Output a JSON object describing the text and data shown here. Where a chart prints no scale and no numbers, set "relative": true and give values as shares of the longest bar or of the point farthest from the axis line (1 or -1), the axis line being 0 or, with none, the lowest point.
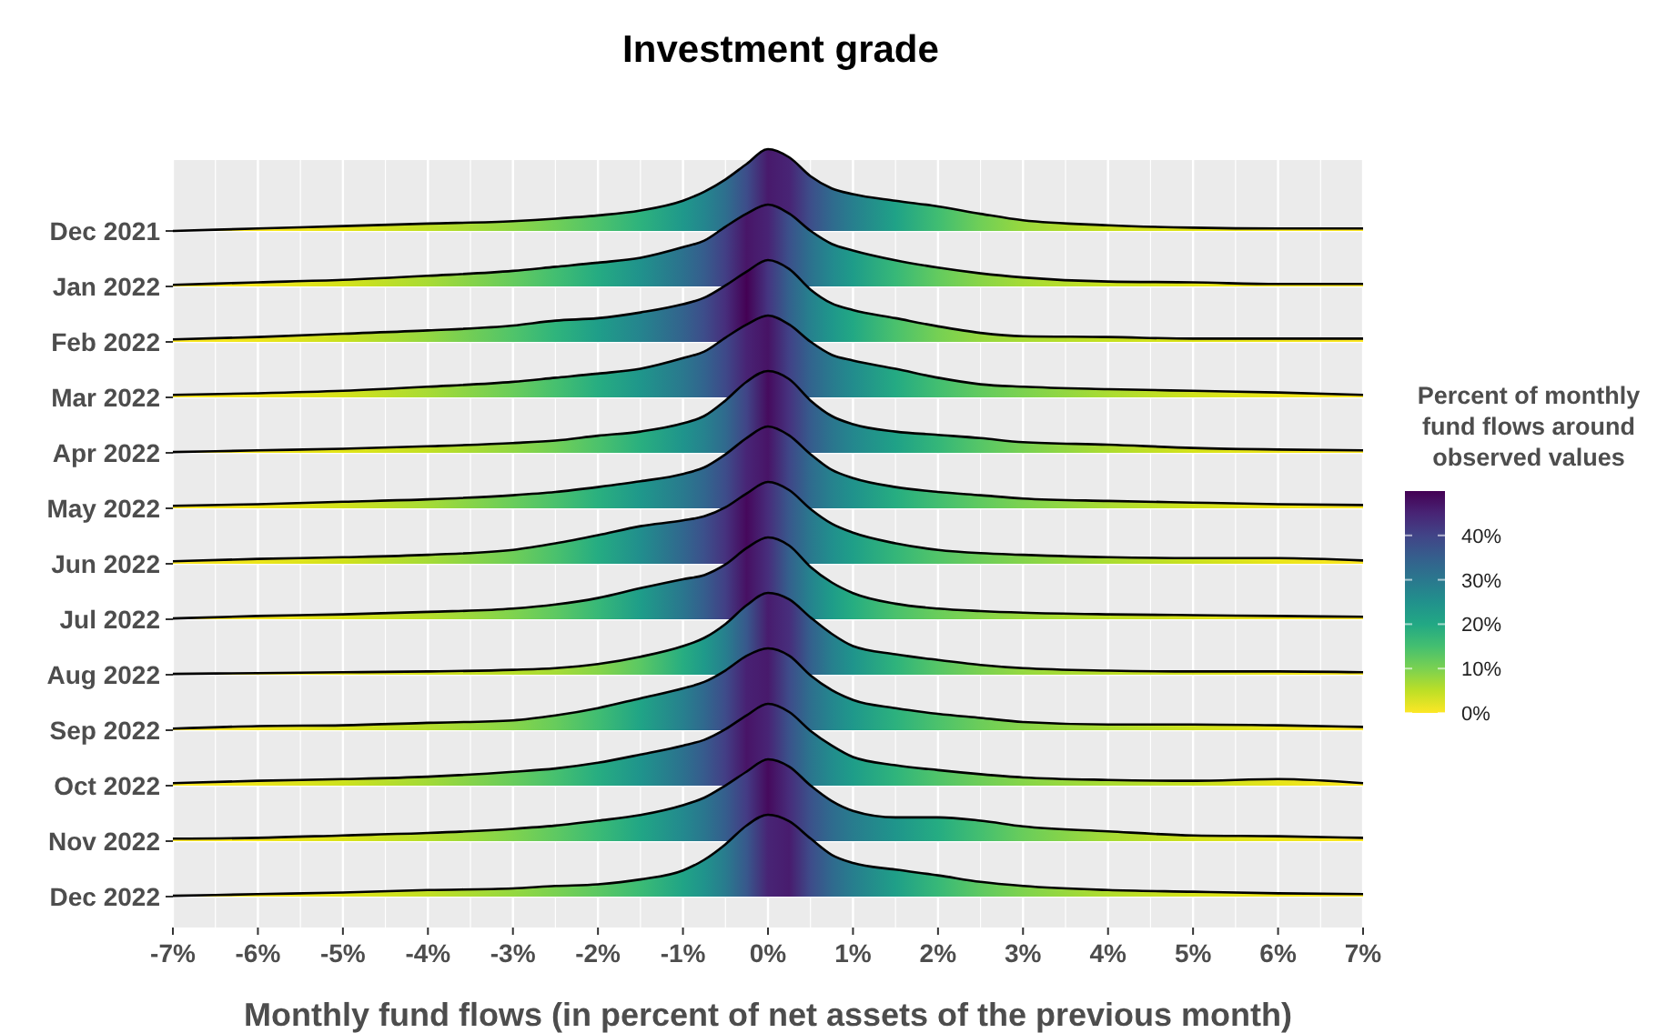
{
  "chart_data": [
    {
      "type": "area",
      "relative": true,
      "title": "Investment grade",
      "clabel": "Percent of monthly fund flows around observed values",
      "clim": [
        0,
        50
      ],
      "cticks": [
        {
          "value": 0,
          "label": "0%"
        },
        {
          "value": 10,
          "label": "10%"
        },
        {
          "value": 20,
          "label": "20%"
        },
        {
          "value": 30,
          "label": "30%"
        },
        {
          "value": 40,
          "label": "40%"
        }
      ],
      "grid": true,
      "xlim": [
        -7,
        7
      ],
      "x": [
        -7,
        -6,
        -5,
        -4,
        -3,
        -2.5,
        -2,
        -1.5,
        -1,
        -0.75,
        -0.5,
        -0.25,
        0,
        0.25,
        0.5,
        0.75,
        1,
        1.5,
        2,
        2.5,
        3,
        4,
        5,
        6,
        7
      ],
      "series": [
        {
          "name": "Dec 2021",
          "values": [
            0,
            0.03,
            0.06,
            0.09,
            0.12,
            0.15,
            0.19,
            0.25,
            0.37,
            0.48,
            0.63,
            0.82,
            1,
            0.9,
            0.67,
            0.52,
            0.45,
            0.37,
            0.3,
            0.21,
            0.13,
            0.07,
            0.04,
            0.03,
            0.03
          ]
        }
      ]
    },
    {
      "type": "area",
      "relative": true,
      "grid": true,
      "xlim": [
        -7,
        7
      ],
      "x": [
        -7,
        -6,
        -5,
        -4,
        -3,
        -2.5,
        -2,
        -1.5,
        -1,
        -0.75,
        -0.5,
        -0.25,
        0,
        0.25,
        0.5,
        0.75,
        1,
        1.5,
        2,
        2.5,
        3,
        4,
        5,
        6,
        7
      ],
      "series": [
        {
          "name": "Jan 2022",
          "values": [
            0.02,
            0.05,
            0.08,
            0.13,
            0.19,
            0.24,
            0.29,
            0.35,
            0.48,
            0.56,
            0.73,
            0.89,
            1,
            0.89,
            0.68,
            0.52,
            0.44,
            0.32,
            0.23,
            0.16,
            0.11,
            0.06,
            0.05,
            0.03,
            0.03
          ]
        }
      ]
    },
    {
      "type": "area",
      "relative": true,
      "grid": true,
      "xlim": [
        -7,
        7
      ],
      "x": [
        -7,
        -6,
        -5,
        -4,
        -3,
        -2.5,
        -2,
        -1.5,
        -1,
        -0.75,
        -0.5,
        -0.25,
        0,
        0.25,
        0.5,
        0.75,
        1,
        1.5,
        2,
        2.5,
        3,
        4,
        5,
        6,
        7
      ],
      "series": [
        {
          "name": "Feb 2022",
          "values": [
            0.03,
            0.06,
            0.1,
            0.14,
            0.2,
            0.26,
            0.29,
            0.36,
            0.46,
            0.54,
            0.69,
            0.86,
            1,
            0.89,
            0.64,
            0.47,
            0.39,
            0.29,
            0.19,
            0.11,
            0.07,
            0.06,
            0.04,
            0.04,
            0.04
          ]
        }
      ]
    },
    {
      "type": "area",
      "relative": true,
      "grid": true,
      "xlim": [
        -7,
        7
      ],
      "x": [
        -7,
        -6,
        -5,
        -4,
        -3,
        -2.5,
        -2,
        -1.5,
        -1,
        -0.75,
        -0.5,
        -0.25,
        0,
        0.25,
        0.5,
        0.75,
        1,
        1.5,
        2,
        2.5,
        3,
        4,
        5,
        6,
        7
      ],
      "series": [
        {
          "name": "Mar 2022",
          "values": [
            0.03,
            0.05,
            0.08,
            0.13,
            0.19,
            0.24,
            0.29,
            0.35,
            0.48,
            0.56,
            0.73,
            0.89,
            1,
            0.89,
            0.68,
            0.52,
            0.45,
            0.35,
            0.24,
            0.16,
            0.13,
            0.1,
            0.08,
            0.06,
            0.03
          ]
        }
      ]
    },
    {
      "type": "area",
      "relative": true,
      "grid": true,
      "xlim": [
        -7,
        7
      ],
      "x": [
        -7,
        -6,
        -5,
        -4,
        -3,
        -2.5,
        -2,
        -1.5,
        -1,
        -0.75,
        -0.5,
        -0.25,
        0,
        0.25,
        0.5,
        0.75,
        1,
        1.5,
        2,
        2.5,
        3,
        4,
        5,
        6,
        7
      ],
      "series": [
        {
          "name": "Apr 2022",
          "values": [
            0.01,
            0.03,
            0.05,
            0.08,
            0.12,
            0.15,
            0.21,
            0.26,
            0.36,
            0.45,
            0.64,
            0.87,
            1,
            0.9,
            0.64,
            0.45,
            0.35,
            0.26,
            0.22,
            0.18,
            0.13,
            0.1,
            0.06,
            0.04,
            0.03
          ]
        }
      ]
    },
    {
      "type": "area",
      "relative": true,
      "grid": true,
      "xlim": [
        -7,
        7
      ],
      "x": [
        -7,
        -6,
        -5,
        -4,
        -3,
        -2.5,
        -2,
        -1.5,
        -1,
        -0.75,
        -0.5,
        -0.25,
        0,
        0.25,
        0.5,
        0.75,
        1,
        1.5,
        2,
        2.5,
        3,
        4,
        5,
        6,
        7
      ],
      "series": [
        {
          "name": "May 2022",
          "values": [
            0.03,
            0.05,
            0.08,
            0.11,
            0.16,
            0.2,
            0.26,
            0.33,
            0.42,
            0.5,
            0.66,
            0.86,
            1,
            0.89,
            0.66,
            0.47,
            0.37,
            0.26,
            0.2,
            0.16,
            0.12,
            0.09,
            0.07,
            0.05,
            0.04
          ]
        }
      ]
    },
    {
      "type": "area",
      "relative": true,
      "grid": true,
      "xlim": [
        -7,
        7
      ],
      "x": [
        -7,
        -6,
        -5,
        -4,
        -3,
        -2.5,
        -2,
        -1.5,
        -1,
        -0.75,
        -0.5,
        -0.25,
        0,
        0.25,
        0.5,
        0.75,
        1,
        1.5,
        2,
        2.5,
        3,
        4,
        5,
        6,
        7
      ],
      "series": [
        {
          "name": "Jun 2022",
          "values": [
            0.03,
            0.06,
            0.08,
            0.11,
            0.17,
            0.25,
            0.35,
            0.46,
            0.53,
            0.58,
            0.69,
            0.86,
            1,
            0.9,
            0.67,
            0.49,
            0.38,
            0.25,
            0.17,
            0.13,
            0.11,
            0.08,
            0.07,
            0.07,
            0.04
          ]
        }
      ]
    },
    {
      "type": "area",
      "relative": true,
      "grid": true,
      "xlim": [
        -7,
        7
      ],
      "x": [
        -7,
        -6,
        -5,
        -4,
        -3,
        -2.5,
        -2,
        -1.5,
        -1,
        -0.75,
        -0.5,
        -0.25,
        0,
        0.25,
        0.5,
        0.75,
        1,
        1.5,
        2,
        2.5,
        3,
        4,
        5,
        6,
        7
      ],
      "series": [
        {
          "name": "Jul 2022",
          "values": [
            0.01,
            0.04,
            0.06,
            0.09,
            0.13,
            0.18,
            0.26,
            0.38,
            0.49,
            0.54,
            0.67,
            0.87,
            1,
            0.9,
            0.64,
            0.45,
            0.32,
            0.19,
            0.13,
            0.1,
            0.08,
            0.06,
            0.05,
            0.04,
            0.03
          ]
        }
      ]
    },
    {
      "type": "area",
      "relative": true,
      "grid": true,
      "xlim": [
        -7,
        7
      ],
      "x": [
        -7,
        -6,
        -5,
        -4,
        -3,
        -2.5,
        -2,
        -1.5,
        -1,
        -0.75,
        -0.5,
        -0.25,
        0,
        0.25,
        0.5,
        0.75,
        1,
        1.5,
        2,
        2.5,
        3,
        4,
        5,
        6,
        7
      ],
      "series": [
        {
          "name": "Aug 2022",
          "values": [
            0.01,
            0.02,
            0.03,
            0.04,
            0.06,
            0.08,
            0.13,
            0.22,
            0.35,
            0.45,
            0.62,
            0.85,
            1.0,
            0.92,
            0.7,
            0.5,
            0.35,
            0.25,
            0.18,
            0.12,
            0.08,
            0.05,
            0.04,
            0.04,
            0.03
          ]
        }
      ]
    },
    {
      "type": "area",
      "relative": true,
      "grid": true,
      "xlim": [
        -7,
        7
      ],
      "x": [
        -7,
        -6,
        -5,
        -4,
        -3,
        -2.5,
        -2,
        -1.5,
        -1,
        -0.75,
        -0.5,
        -0.25,
        0,
        0.25,
        0.5,
        0.75,
        1,
        1.5,
        2,
        2.5,
        3,
        4,
        5,
        6,
        7
      ],
      "series": [
        {
          "name": "Sep 2022",
          "values": [
            0.02,
            0.05,
            0.06,
            0.09,
            0.12,
            0.18,
            0.27,
            0.39,
            0.51,
            0.59,
            0.73,
            0.91,
            1,
            0.91,
            0.67,
            0.49,
            0.37,
            0.27,
            0.2,
            0.15,
            0.1,
            0.07,
            0.07,
            0.06,
            0.04
          ]
        }
      ]
    },
    {
      "type": "area",
      "relative": true,
      "grid": true,
      "xlim": [
        -7,
        7
      ],
      "x": [
        -7,
        -6,
        -5,
        -4,
        -3,
        -2.5,
        -2,
        -1.5,
        -1,
        -0.75,
        -0.5,
        -0.25,
        0,
        0.25,
        0.5,
        0.75,
        1,
        1.5,
        2,
        2.5,
        3,
        4,
        5,
        6,
        7
      ],
      "series": [
        {
          "name": "Oct 2022",
          "values": [
            0.03,
            0.06,
            0.08,
            0.11,
            0.17,
            0.21,
            0.28,
            0.38,
            0.49,
            0.56,
            0.69,
            0.86,
            1,
            0.9,
            0.67,
            0.49,
            0.35,
            0.25,
            0.19,
            0.14,
            0.1,
            0.07,
            0.06,
            0.08,
            0.03
          ]
        }
      ]
    },
    {
      "type": "area",
      "relative": true,
      "grid": true,
      "xlim": [
        -7,
        7
      ],
      "x": [
        -7,
        -6,
        -5,
        -4,
        -3,
        -2.5,
        -2,
        -1.5,
        -1,
        -0.75,
        -0.5,
        -0.25,
        0,
        0.25,
        0.5,
        0.75,
        1,
        1.5,
        2,
        2.5,
        3,
        4,
        5,
        6,
        7
      ],
      "series": [
        {
          "name": "Nov 2022",
          "values": [
            0.03,
            0.04,
            0.07,
            0.1,
            0.15,
            0.19,
            0.25,
            0.32,
            0.44,
            0.53,
            0.68,
            0.85,
            1,
            0.91,
            0.68,
            0.49,
            0.37,
            0.29,
            0.29,
            0.25,
            0.18,
            0.12,
            0.07,
            0.06,
            0.04
          ]
        }
      ]
    },
    {
      "type": "area",
      "relative": true,
      "grid": true,
      "xlabel": "Monthly fund flows (in percent of net assets of the previous month)",
      "xlim": [
        -7,
        7
      ],
      "xticks": [
        {
          "value": -7,
          "label": "-7%"
        },
        {
          "value": -6,
          "label": "-6%"
        },
        {
          "value": -5,
          "label": "-5%"
        },
        {
          "value": -4,
          "label": "-4%"
        },
        {
          "value": -3,
          "label": "-3%"
        },
        {
          "value": -2,
          "label": "-2%"
        },
        {
          "value": -1,
          "label": "-1%"
        },
        {
          "value": 0,
          "label": "0%"
        },
        {
          "value": 1,
          "label": "1%"
        },
        {
          "value": 2,
          "label": "2%"
        },
        {
          "value": 3,
          "label": "3%"
        },
        {
          "value": 4,
          "label": "4%"
        },
        {
          "value": 5,
          "label": "5%"
        },
        {
          "value": 6,
          "label": "6%"
        },
        {
          "value": 7,
          "label": "7%"
        }
      ],
      "x": [
        -7,
        -6,
        -5,
        -4,
        -3,
        -2.5,
        -2,
        -1.5,
        -1,
        -0.75,
        -0.5,
        -0.25,
        0,
        0.25,
        0.5,
        0.75,
        1,
        1.5,
        2,
        2.5,
        3,
        4,
        5,
        6,
        7
      ],
      "series": [
        {
          "name": "Dec 2022",
          "values": [
            0.01,
            0.03,
            0.05,
            0.08,
            0.1,
            0.13,
            0.15,
            0.21,
            0.32,
            0.45,
            0.64,
            0.87,
            1,
            0.92,
            0.71,
            0.51,
            0.41,
            0.33,
            0.26,
            0.18,
            0.13,
            0.08,
            0.06,
            0.04,
            0.03
          ]
        }
      ]
    }
  ]
}
